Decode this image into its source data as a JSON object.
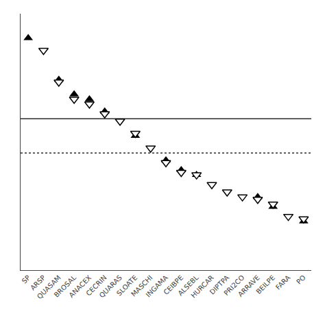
{
  "chart_data": {
    "type": "scatter",
    "categories": [
      "SP",
      "ARSP",
      "QUASAM",
      "BROSAL",
      "ANACEX",
      "CECRIN",
      "QUARAS",
      "SLOATE",
      "MASCHI",
      "INGAMA",
      "CEIBPE",
      "ALSEBL",
      "HURCAR",
      "DIPTPA",
      "PRI2CO",
      "ARRAVE",
      "BEILPE",
      "FARA",
      "PO"
    ],
    "series": [
      {
        "color": "black",
        "marker": "triangle-up",
        "values": [
          9.5,
          null,
          7.8,
          7.2,
          7.0,
          6.5,
          null,
          5.5,
          null,
          4.5,
          4.1,
          3.9,
          null,
          null,
          null,
          3.0,
          2.6,
          null,
          2.0
        ]
      },
      {
        "color": "black",
        "marker": "triangle-down-open",
        "values": [
          null,
          9.0,
          7.7,
          7.0,
          6.8,
          6.4,
          6.1,
          5.6,
          5.0,
          4.4,
          4.0,
          3.9,
          3.5,
          3.2,
          3.0,
          2.9,
          2.7,
          2.2,
          2.1
        ]
      }
    ],
    "hlines": [
      {
        "y": 6.2,
        "color": "black",
        "line_style": "solid"
      },
      {
        "y": 4.8,
        "color": "black",
        "line_style": "dotted"
      }
    ],
    "ylim": [
      0.0,
      10.5
    ],
    "grid": false,
    "tick_labels": "x"
  }
}
